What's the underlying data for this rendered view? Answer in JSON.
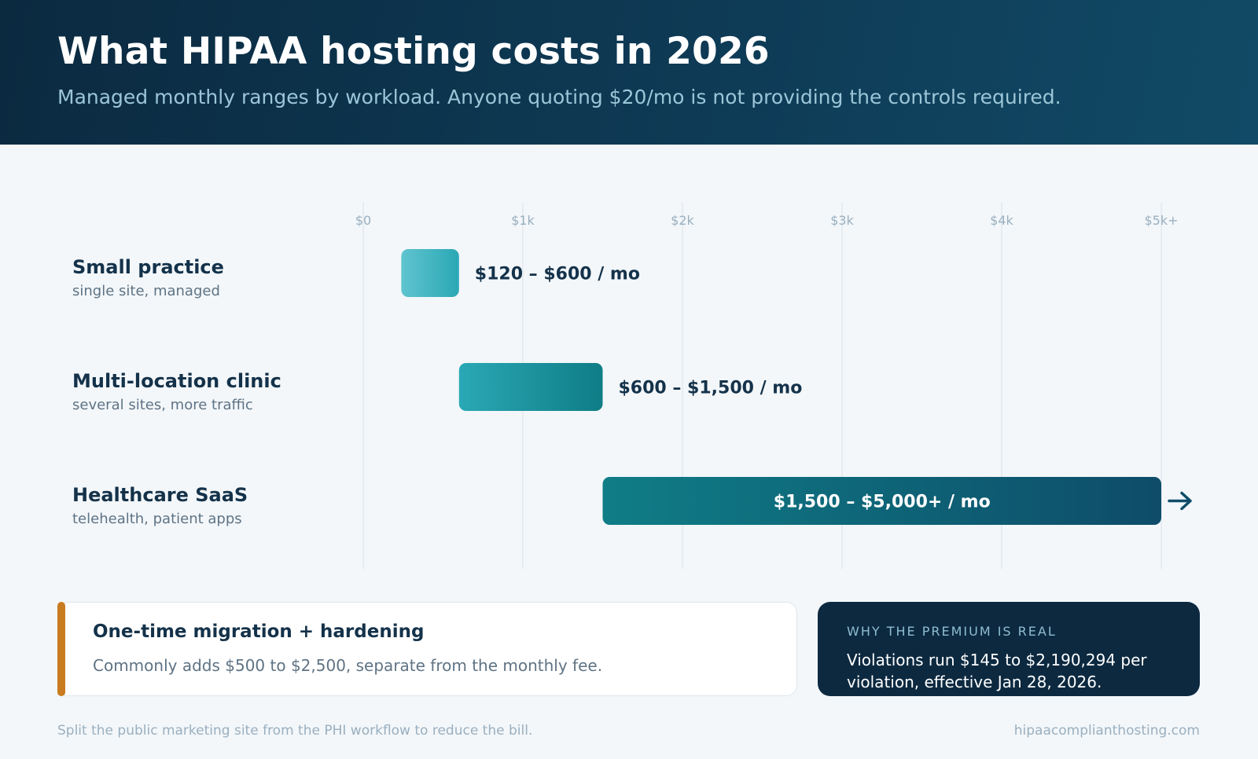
{
  "header": {
    "title": "What HIPAA hosting costs in 2026",
    "subtitle": "Managed monthly ranges by workload. Anyone quoting $20/mo is not providing the controls required."
  },
  "chart_data": {
    "type": "bar",
    "orientation": "horizontal-range",
    "x_ticks": [
      "$0",
      "$1k",
      "$2k",
      "$3k",
      "$4k",
      "$5k+"
    ],
    "xlim": [
      0,
      5000
    ],
    "grid": true,
    "series": [
      {
        "category": "Small practice",
        "subtitle": "single site, managed",
        "start": 120,
        "end": 600,
        "label": "$120 – $600 / mo",
        "open_ended": false
      },
      {
        "category": "Multi-location clinic",
        "subtitle": "several sites, more traffic",
        "start": 600,
        "end": 1500,
        "label": "$600 – $1,500 / mo",
        "open_ended": false
      },
      {
        "category": "Healthcare SaaS",
        "subtitle": "telehealth, patient apps",
        "start": 1500,
        "end": 5000,
        "label": "$1,500 – $5,000+ / mo",
        "open_ended": true
      }
    ],
    "colors": {
      "small": [
        "#5fc4cf",
        "#2aa8b5"
      ],
      "multi": [
        "#2aa8b5",
        "#0f7d86"
      ],
      "saas": [
        "#0f7d86",
        "#0e4c69"
      ],
      "grid": "#e1e8ee",
      "tick_text": "#9aafbf"
    }
  },
  "migration_card": {
    "title": "One-time migration + hardening",
    "body": "Commonly adds $500 to $2,500, separate from the monthly fee."
  },
  "premium_card": {
    "kicker": "WHY THE PREMIUM IS REAL",
    "body": "Violations run $145 to $2,190,294 per violation, effective Jan 28, 2026."
  },
  "footer": {
    "note": "Split the public marketing site from the PHI workflow to reduce the bill.",
    "site": "hipaacomplianthosting.com"
  },
  "colors": {
    "header_bg": "#0b2a40",
    "accent_orange": "#c97b1f",
    "text_dark": "#14324a"
  }
}
